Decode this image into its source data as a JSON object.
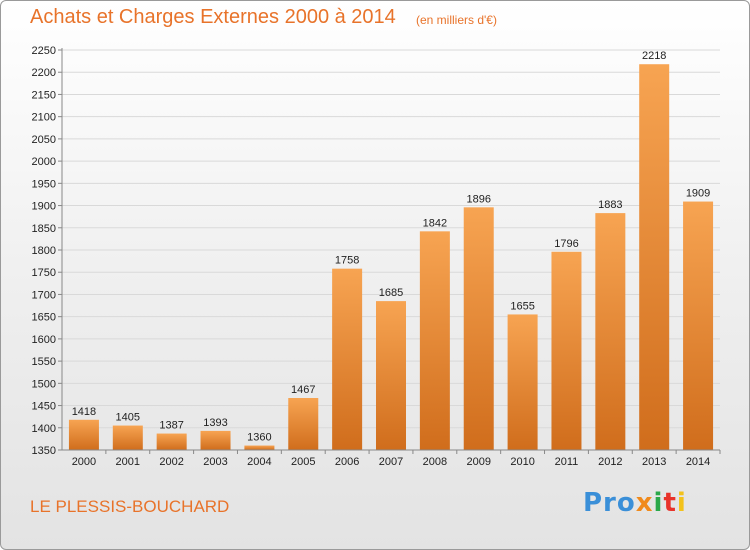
{
  "title": "Achats et Charges Externes 2000 à 2014",
  "subtitle": "(en milliers d'€)",
  "commune": "LE PLESSIS-BOUCHARD",
  "logo": {
    "parts": [
      "Pro",
      "x",
      "i",
      "t",
      "i"
    ],
    "colors": [
      "#3a8fd8",
      "#f08a1c",
      "#2aa84a",
      "#e8332a",
      "#f3c21b"
    ]
  },
  "colors": {
    "title": "#e8732a",
    "bar_top": "#f7a452",
    "bar_bottom": "#d06d1c",
    "grid": "#d9d9d9",
    "axis": "#888888"
  },
  "chart_data": {
    "type": "bar",
    "title": "Achats et Charges Externes 2000 à 2014",
    "xlabel": "",
    "ylabel": "",
    "categories": [
      "2000",
      "2001",
      "2002",
      "2003",
      "2004",
      "2005",
      "2006",
      "2007",
      "2008",
      "2009",
      "2010",
      "2011",
      "2012",
      "2013",
      "2014"
    ],
    "values": [
      1418,
      1405,
      1387,
      1393,
      1360,
      1467,
      1758,
      1685,
      1842,
      1896,
      1655,
      1796,
      1883,
      2218,
      1909
    ],
    "ylim": [
      1350,
      2250
    ],
    "yticks": [
      1350,
      1400,
      1450,
      1500,
      1550,
      1600,
      1650,
      1700,
      1750,
      1800,
      1850,
      1900,
      1950,
      2000,
      2050,
      2100,
      2150,
      2200,
      2250
    ],
    "grid": true,
    "legend": "none"
  }
}
